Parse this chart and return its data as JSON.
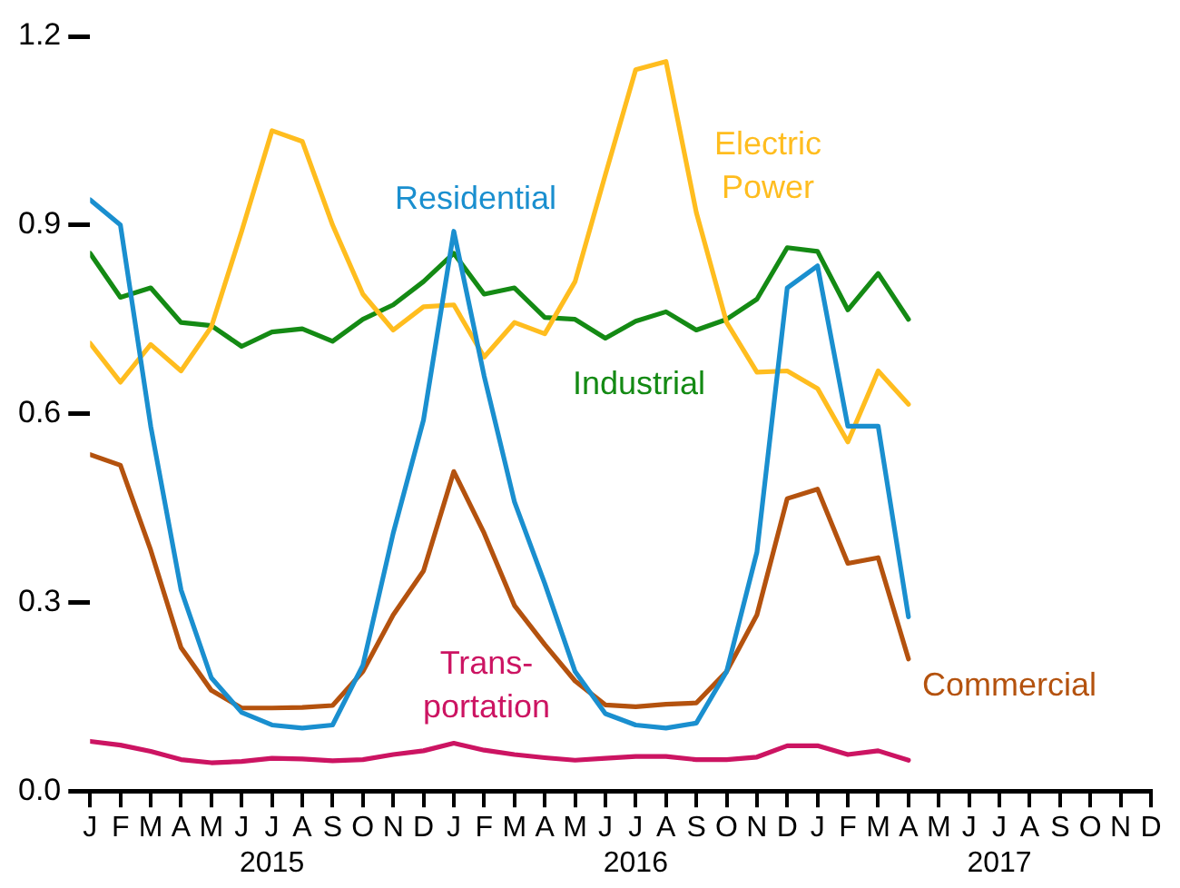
{
  "chart_data": {
    "type": "line",
    "x": [
      "2015-01",
      "2015-02",
      "2015-03",
      "2015-04",
      "2015-05",
      "2015-06",
      "2015-07",
      "2015-08",
      "2015-09",
      "2015-10",
      "2015-11",
      "2015-12",
      "2016-01",
      "2016-02",
      "2016-03",
      "2016-04",
      "2016-05",
      "2016-06",
      "2016-07",
      "2016-08",
      "2016-09",
      "2016-10",
      "2016-11",
      "2016-12",
      "2017-01",
      "2017-02",
      "2017-03",
      "2017-04"
    ],
    "series": [
      {
        "name": "Residential",
        "color": "#1a8fcf",
        "values": [
          0.94,
          0.9,
          0.58,
          0.32,
          0.18,
          0.125,
          0.105,
          0.1,
          0.105,
          0.2,
          0.41,
          0.59,
          0.89,
          0.66,
          0.46,
          0.33,
          0.19,
          0.123,
          0.105,
          0.1,
          0.108,
          0.19,
          0.38,
          0.8,
          0.835,
          0.58,
          0.58,
          0.277
        ]
      },
      {
        "name": "Electric Power",
        "color": "#ffbd1f",
        "values": [
          0.712,
          0.65,
          0.71,
          0.668,
          0.738,
          0.89,
          1.05,
          1.033,
          0.9,
          0.79,
          0.733,
          0.77,
          0.773,
          0.69,
          0.745,
          0.727,
          0.81,
          0.98,
          1.147,
          1.16,
          0.92,
          0.745,
          0.666,
          0.668,
          0.64,
          0.555,
          0.668,
          0.615
        ]
      },
      {
        "name": "Industrial",
        "color": "#148a14",
        "values": [
          0.855,
          0.785,
          0.8,
          0.745,
          0.74,
          0.707,
          0.73,
          0.735,
          0.715,
          0.75,
          0.773,
          0.81,
          0.855,
          0.79,
          0.8,
          0.753,
          0.75,
          0.72,
          0.747,
          0.762,
          0.733,
          0.75,
          0.782,
          0.864,
          0.858,
          0.765,
          0.823,
          0.75
        ]
      },
      {
        "name": "Commercial",
        "color": "#b4520e",
        "values": [
          0.535,
          0.518,
          0.383,
          0.228,
          0.16,
          0.132,
          0.132,
          0.133,
          0.136,
          0.19,
          0.28,
          0.35,
          0.508,
          0.41,
          0.295,
          0.233,
          0.175,
          0.137,
          0.134,
          0.138,
          0.14,
          0.19,
          0.28,
          0.465,
          0.48,
          0.362,
          0.371,
          0.21
        ]
      },
      {
        "name": "Trans-portation",
        "color": "#cc1462",
        "values": [
          0.079,
          0.073,
          0.063,
          0.05,
          0.045,
          0.047,
          0.052,
          0.051,
          0.048,
          0.05,
          0.058,
          0.064,
          0.076,
          0.065,
          0.058,
          0.053,
          0.049,
          0.052,
          0.055,
          0.055,
          0.05,
          0.05,
          0.054,
          0.072,
          0.072,
          0.058,
          0.064,
          0.049
        ]
      }
    ],
    "xlim": [
      "2015-01",
      "2017-12"
    ],
    "xticks": [
      {
        "value": "2015-01",
        "label": "J"
      },
      {
        "value": "2015-02",
        "label": "F"
      },
      {
        "value": "2015-03",
        "label": "M"
      },
      {
        "value": "2015-04",
        "label": "A"
      },
      {
        "value": "2015-05",
        "label": "M"
      },
      {
        "value": "2015-06",
        "label": "J"
      },
      {
        "value": "2015-07",
        "label": "J\n2015"
      },
      {
        "value": "2015-08",
        "label": "A"
      },
      {
        "value": "2015-09",
        "label": "S"
      },
      {
        "value": "2015-10",
        "label": "O"
      },
      {
        "value": "2015-11",
        "label": "N"
      },
      {
        "value": "2015-12",
        "label": "D"
      },
      {
        "value": "2016-01",
        "label": "J"
      },
      {
        "value": "2016-02",
        "label": "F"
      },
      {
        "value": "2016-03",
        "label": "M"
      },
      {
        "value": "2016-04",
        "label": "A"
      },
      {
        "value": "2016-05",
        "label": "M"
      },
      {
        "value": "2016-06",
        "label": "J"
      },
      {
        "value": "2016-07",
        "label": "J\n2016"
      },
      {
        "value": "2016-08",
        "label": "A"
      },
      {
        "value": "2016-09",
        "label": "S"
      },
      {
        "value": "2016-10",
        "label": "O"
      },
      {
        "value": "2016-11",
        "label": "N"
      },
      {
        "value": "2016-12",
        "label": "D"
      },
      {
        "value": "2017-01",
        "label": "J"
      },
      {
        "value": "2017-02",
        "label": "F"
      },
      {
        "value": "2017-03",
        "label": "M"
      },
      {
        "value": "2017-04",
        "label": "A"
      },
      {
        "value": "2017-05",
        "label": "M"
      },
      {
        "value": "2017-06",
        "label": "J"
      },
      {
        "value": "2017-07",
        "label": "J\n2017"
      },
      {
        "value": "2017-08",
        "label": "A"
      },
      {
        "value": "2017-09",
        "label": "S"
      },
      {
        "value": "2017-10",
        "label": "O"
      },
      {
        "value": "2017-11",
        "label": "N"
      },
      {
        "value": "2017-12",
        "label": "D"
      }
    ],
    "ylim": [
      0,
      1.2
    ],
    "yticks": [
      {
        "value": 0,
        "label": "0.0"
      },
      0.3,
      0.6,
      0.9,
      1.2
    ],
    "grid": false,
    "legend": false,
    "marker": "none",
    "line_style": "solid"
  }
}
